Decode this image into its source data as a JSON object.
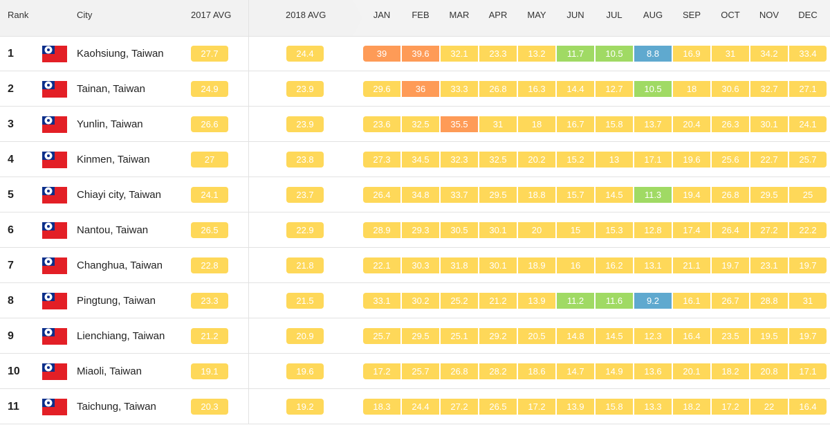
{
  "colors": {
    "moderate": "#fed859",
    "unhealthy_sensitive": "#fe9b57",
    "good": "#a0da64",
    "very_good": "#5fa9cf"
  },
  "header": {
    "rank": "Rank",
    "city": "City",
    "avg2017": "2017 AVG",
    "avg2018": "2018 AVG",
    "months": [
      "JAN",
      "FEB",
      "MAR",
      "APR",
      "MAY",
      "JUN",
      "JUL",
      "AUG",
      "SEP",
      "OCT",
      "NOV",
      "DEC"
    ]
  },
  "rows": [
    {
      "rank": "1",
      "city": "Kaohsiung, Taiwan",
      "flag": "taiwan-flag-icon",
      "avg2017": "27.7",
      "avg2018": "24.4",
      "months": [
        [
          "39",
          "unhealthy_sensitive"
        ],
        [
          "39.6",
          "unhealthy_sensitive"
        ],
        [
          "32.1",
          "moderate"
        ],
        [
          "23.3",
          "moderate"
        ],
        [
          "13.2",
          "moderate"
        ],
        [
          "11.7",
          "good"
        ],
        [
          "10.5",
          "good"
        ],
        [
          "8.8",
          "very_good"
        ],
        [
          "16.9",
          "moderate"
        ],
        [
          "31",
          "moderate"
        ],
        [
          "34.2",
          "moderate"
        ],
        [
          "33.4",
          "moderate"
        ]
      ]
    },
    {
      "rank": "2",
      "city": "Tainan, Taiwan",
      "flag": "taiwan-flag-icon",
      "avg2017": "24.9",
      "avg2018": "23.9",
      "months": [
        [
          "29.6",
          "moderate"
        ],
        [
          "36",
          "unhealthy_sensitive"
        ],
        [
          "33.3",
          "moderate"
        ],
        [
          "26.8",
          "moderate"
        ],
        [
          "16.3",
          "moderate"
        ],
        [
          "14.4",
          "moderate"
        ],
        [
          "12.7",
          "moderate"
        ],
        [
          "10.5",
          "good"
        ],
        [
          "18",
          "moderate"
        ],
        [
          "30.6",
          "moderate"
        ],
        [
          "32.7",
          "moderate"
        ],
        [
          "27.1",
          "moderate"
        ]
      ]
    },
    {
      "rank": "3",
      "city": "Yunlin, Taiwan",
      "flag": "taiwan-flag-icon",
      "avg2017": "26.6",
      "avg2018": "23.9",
      "months": [
        [
          "23.6",
          "moderate"
        ],
        [
          "32.5",
          "moderate"
        ],
        [
          "35.5",
          "unhealthy_sensitive"
        ],
        [
          "31",
          "moderate"
        ],
        [
          "18",
          "moderate"
        ],
        [
          "16.7",
          "moderate"
        ],
        [
          "15.8",
          "moderate"
        ],
        [
          "13.7",
          "moderate"
        ],
        [
          "20.4",
          "moderate"
        ],
        [
          "26.3",
          "moderate"
        ],
        [
          "30.1",
          "moderate"
        ],
        [
          "24.1",
          "moderate"
        ]
      ]
    },
    {
      "rank": "4",
      "city": "Kinmen, Taiwan",
      "flag": "taiwan-flag-icon",
      "avg2017": "27",
      "avg2018": "23.8",
      "months": [
        [
          "27.3",
          "moderate"
        ],
        [
          "34.5",
          "moderate"
        ],
        [
          "32.3",
          "moderate"
        ],
        [
          "32.5",
          "moderate"
        ],
        [
          "20.2",
          "moderate"
        ],
        [
          "15.2",
          "moderate"
        ],
        [
          "13",
          "moderate"
        ],
        [
          "17.1",
          "moderate"
        ],
        [
          "19.6",
          "moderate"
        ],
        [
          "25.6",
          "moderate"
        ],
        [
          "22.7",
          "moderate"
        ],
        [
          "25.7",
          "moderate"
        ]
      ]
    },
    {
      "rank": "5",
      "city": "Chiayi city, Taiwan",
      "flag": "taiwan-flag-icon",
      "avg2017": "24.1",
      "avg2018": "23.7",
      "months": [
        [
          "26.4",
          "moderate"
        ],
        [
          "34.8",
          "moderate"
        ],
        [
          "33.7",
          "moderate"
        ],
        [
          "29.5",
          "moderate"
        ],
        [
          "18.8",
          "moderate"
        ],
        [
          "15.7",
          "moderate"
        ],
        [
          "14.5",
          "moderate"
        ],
        [
          "11.3",
          "good"
        ],
        [
          "19.4",
          "moderate"
        ],
        [
          "26.8",
          "moderate"
        ],
        [
          "29.5",
          "moderate"
        ],
        [
          "25",
          "moderate"
        ]
      ]
    },
    {
      "rank": "6",
      "city": "Nantou, Taiwan",
      "flag": "taiwan-flag-icon",
      "avg2017": "26.5",
      "avg2018": "22.9",
      "months": [
        [
          "28.9",
          "moderate"
        ],
        [
          "29.3",
          "moderate"
        ],
        [
          "30.5",
          "moderate"
        ],
        [
          "30.1",
          "moderate"
        ],
        [
          "20",
          "moderate"
        ],
        [
          "15",
          "moderate"
        ],
        [
          "15.3",
          "moderate"
        ],
        [
          "12.8",
          "moderate"
        ],
        [
          "17.4",
          "moderate"
        ],
        [
          "26.4",
          "moderate"
        ],
        [
          "27.2",
          "moderate"
        ],
        [
          "22.2",
          "moderate"
        ]
      ]
    },
    {
      "rank": "7",
      "city": "Changhua, Taiwan",
      "flag": "taiwan-flag-icon",
      "avg2017": "22.8",
      "avg2018": "21.8",
      "months": [
        [
          "22.1",
          "moderate"
        ],
        [
          "30.3",
          "moderate"
        ],
        [
          "31.8",
          "moderate"
        ],
        [
          "30.1",
          "moderate"
        ],
        [
          "18.9",
          "moderate"
        ],
        [
          "16",
          "moderate"
        ],
        [
          "16.2",
          "moderate"
        ],
        [
          "13.1",
          "moderate"
        ],
        [
          "21.1",
          "moderate"
        ],
        [
          "19.7",
          "moderate"
        ],
        [
          "23.1",
          "moderate"
        ],
        [
          "19.7",
          "moderate"
        ]
      ]
    },
    {
      "rank": "8",
      "city": "Pingtung, Taiwan",
      "flag": "taiwan-flag-icon",
      "avg2017": "23.3",
      "avg2018": "21.5",
      "months": [
        [
          "33.1",
          "moderate"
        ],
        [
          "30.2",
          "moderate"
        ],
        [
          "25.2",
          "moderate"
        ],
        [
          "21.2",
          "moderate"
        ],
        [
          "13.9",
          "moderate"
        ],
        [
          "11.2",
          "good"
        ],
        [
          "11.6",
          "good"
        ],
        [
          "9.2",
          "very_good"
        ],
        [
          "16.1",
          "moderate"
        ],
        [
          "26.7",
          "moderate"
        ],
        [
          "28.8",
          "moderate"
        ],
        [
          "31",
          "moderate"
        ]
      ]
    },
    {
      "rank": "9",
      "city": "Lienchiang, Taiwan",
      "flag": "taiwan-flag-icon",
      "avg2017": "21.2",
      "avg2018": "20.9",
      "months": [
        [
          "25.7",
          "moderate"
        ],
        [
          "29.5",
          "moderate"
        ],
        [
          "25.1",
          "moderate"
        ],
        [
          "29.2",
          "moderate"
        ],
        [
          "20.5",
          "moderate"
        ],
        [
          "14.8",
          "moderate"
        ],
        [
          "14.5",
          "moderate"
        ],
        [
          "12.3",
          "moderate"
        ],
        [
          "16.4",
          "moderate"
        ],
        [
          "23.5",
          "moderate"
        ],
        [
          "19.5",
          "moderate"
        ],
        [
          "19.7",
          "moderate"
        ]
      ]
    },
    {
      "rank": "10",
      "city": "Miaoli, Taiwan",
      "flag": "taiwan-flag-icon",
      "avg2017": "19.1",
      "avg2018": "19.6",
      "months": [
        [
          "17.2",
          "moderate"
        ],
        [
          "25.7",
          "moderate"
        ],
        [
          "26.8",
          "moderate"
        ],
        [
          "28.2",
          "moderate"
        ],
        [
          "18.6",
          "moderate"
        ],
        [
          "14.7",
          "moderate"
        ],
        [
          "14.9",
          "moderate"
        ],
        [
          "13.6",
          "moderate"
        ],
        [
          "20.1",
          "moderate"
        ],
        [
          "18.2",
          "moderate"
        ],
        [
          "20.8",
          "moderate"
        ],
        [
          "17.1",
          "moderate"
        ]
      ]
    },
    {
      "rank": "11",
      "city": "Taichung, Taiwan",
      "flag": "taiwan-flag-icon",
      "avg2017": "20.3",
      "avg2018": "19.2",
      "months": [
        [
          "18.3",
          "moderate"
        ],
        [
          "24.4",
          "moderate"
        ],
        [
          "27.2",
          "moderate"
        ],
        [
          "26.5",
          "moderate"
        ],
        [
          "17.2",
          "moderate"
        ],
        [
          "13.9",
          "moderate"
        ],
        [
          "15.8",
          "moderate"
        ],
        [
          "13.3",
          "moderate"
        ],
        [
          "18.2",
          "moderate"
        ],
        [
          "17.2",
          "moderate"
        ],
        [
          "22",
          "moderate"
        ],
        [
          "16.4",
          "moderate"
        ]
      ]
    }
  ]
}
